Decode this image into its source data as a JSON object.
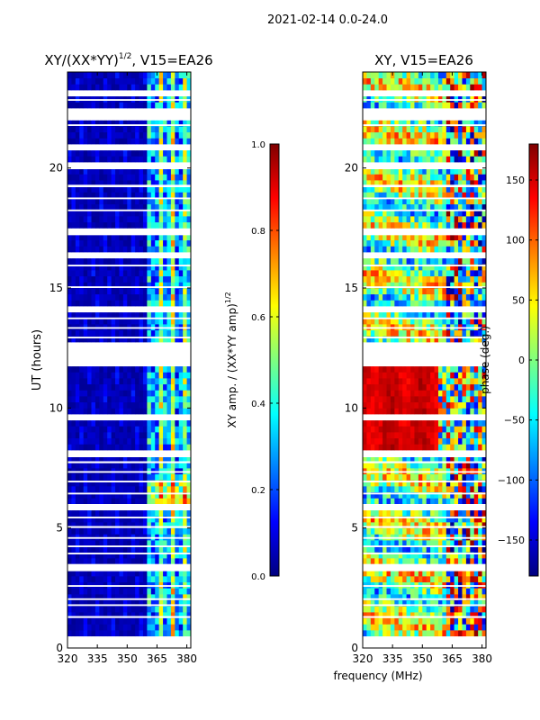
{
  "figure_title": "2021-02-14 0.0-24.0",
  "shared_xlabel": "frequency (MHz)",
  "colors": {
    "jet": [
      "#00007f",
      "#0000ff",
      "#007fff",
      "#00ffff",
      "#7fff7f",
      "#ffff00",
      "#ff7f00",
      "#ff0000",
      "#7f0000"
    ],
    "gap": "#ffffff",
    "low_fill": "#00008f"
  },
  "chart_data": [
    {
      "type": "heatmap",
      "title": "XY/(XX*YY)",
      "title_exponent": "1/2",
      "title_suffix": ", V15=EA26",
      "ylabel": "UT (hours)",
      "xlabel": "",
      "xlim": [
        320,
        382
      ],
      "ylim": [
        0,
        24
      ],
      "xticks": [
        "320",
        "335",
        "350",
        "365",
        "380"
      ],
      "xtick_values": [
        320,
        335,
        350,
        365,
        380
      ],
      "yticks": [
        "0",
        "5",
        "10",
        "15",
        "20"
      ],
      "ytick_values": [
        0,
        5,
        10,
        15,
        20
      ],
      "description_values": "normalized XY amplitude; near 0 below ~360 MHz, mixed 0.2-0.7 above ~360 MHz",
      "colorbar": {
        "label": "XY amp. / (XX*YY amp)",
        "label_exponent": "1/2",
        "range": [
          0.0,
          1.0
        ],
        "ticks": [
          "0.0",
          "0.2",
          "0.4",
          "0.6",
          "0.8",
          "1.0"
        ],
        "tick_values": [
          0.0,
          0.2,
          0.4,
          0.6,
          0.8,
          1.0
        ]
      }
    },
    {
      "type": "heatmap",
      "title": "XY, V15=EA26",
      "ylabel": "",
      "xlabel": "frequency (MHz)",
      "xlim": [
        320,
        382
      ],
      "ylim": [
        0,
        24
      ],
      "xticks": [
        "320",
        "335",
        "350",
        "365",
        "380"
      ],
      "xtick_values": [
        320,
        335,
        350,
        365,
        380
      ],
      "yticks": [
        "0",
        "5",
        "10",
        "15",
        "20"
      ],
      "ytick_values": [
        0,
        5,
        10,
        15,
        20
      ],
      "description_values": "XY phase in degrees; ~+150 deg block between 8 and 12 UT, mixed elsewhere",
      "colorbar": {
        "label": "phase (deg.)",
        "range": [
          -180,
          180
        ],
        "ticks": [
          "−150",
          "−100",
          "−50",
          "0",
          "50",
          "100",
          "150"
        ],
        "tick_values": [
          -150,
          -100,
          -50,
          0,
          50,
          100,
          150
        ]
      }
    }
  ],
  "flagged_ut_bands": [
    [
      0.05,
      0.15
    ],
    [
      0.35,
      0.45
    ],
    [
      1.25,
      1.33
    ],
    [
      1.75,
      1.82
    ],
    [
      2.0,
      2.07
    ],
    [
      2.55,
      2.62
    ],
    [
      3.2,
      3.5
    ],
    [
      3.9,
      3.97
    ],
    [
      4.2,
      4.27
    ],
    [
      4.55,
      4.62
    ],
    [
      5.0,
      5.08
    ],
    [
      5.4,
      5.47
    ],
    [
      5.75,
      6.0
    ],
    [
      6.4,
      6.47
    ],
    [
      6.9,
      6.97
    ],
    [
      7.3,
      7.37
    ],
    [
      7.7,
      7.78
    ],
    [
      7.95,
      8.15
    ],
    [
      9.6,
      9.67
    ],
    [
      11.85,
      12.65
    ],
    [
      12.9,
      12.97
    ],
    [
      13.3,
      13.37
    ],
    [
      13.7,
      13.77
    ],
    [
      14.1,
      14.2
    ],
    [
      15.0,
      15.07
    ],
    [
      15.9,
      15.97
    ],
    [
      16.35,
      16.42
    ],
    [
      17.2,
      17.45
    ],
    [
      18.2,
      18.27
    ],
    [
      18.7,
      18.77
    ],
    [
      19.2,
      19.3
    ],
    [
      19.95,
      20.2
    ],
    [
      20.85,
      20.92
    ],
    [
      21.75,
      21.82
    ],
    [
      22.1,
      22.4
    ],
    [
      22.8,
      22.87
    ],
    [
      23.1,
      23.17
    ]
  ]
}
